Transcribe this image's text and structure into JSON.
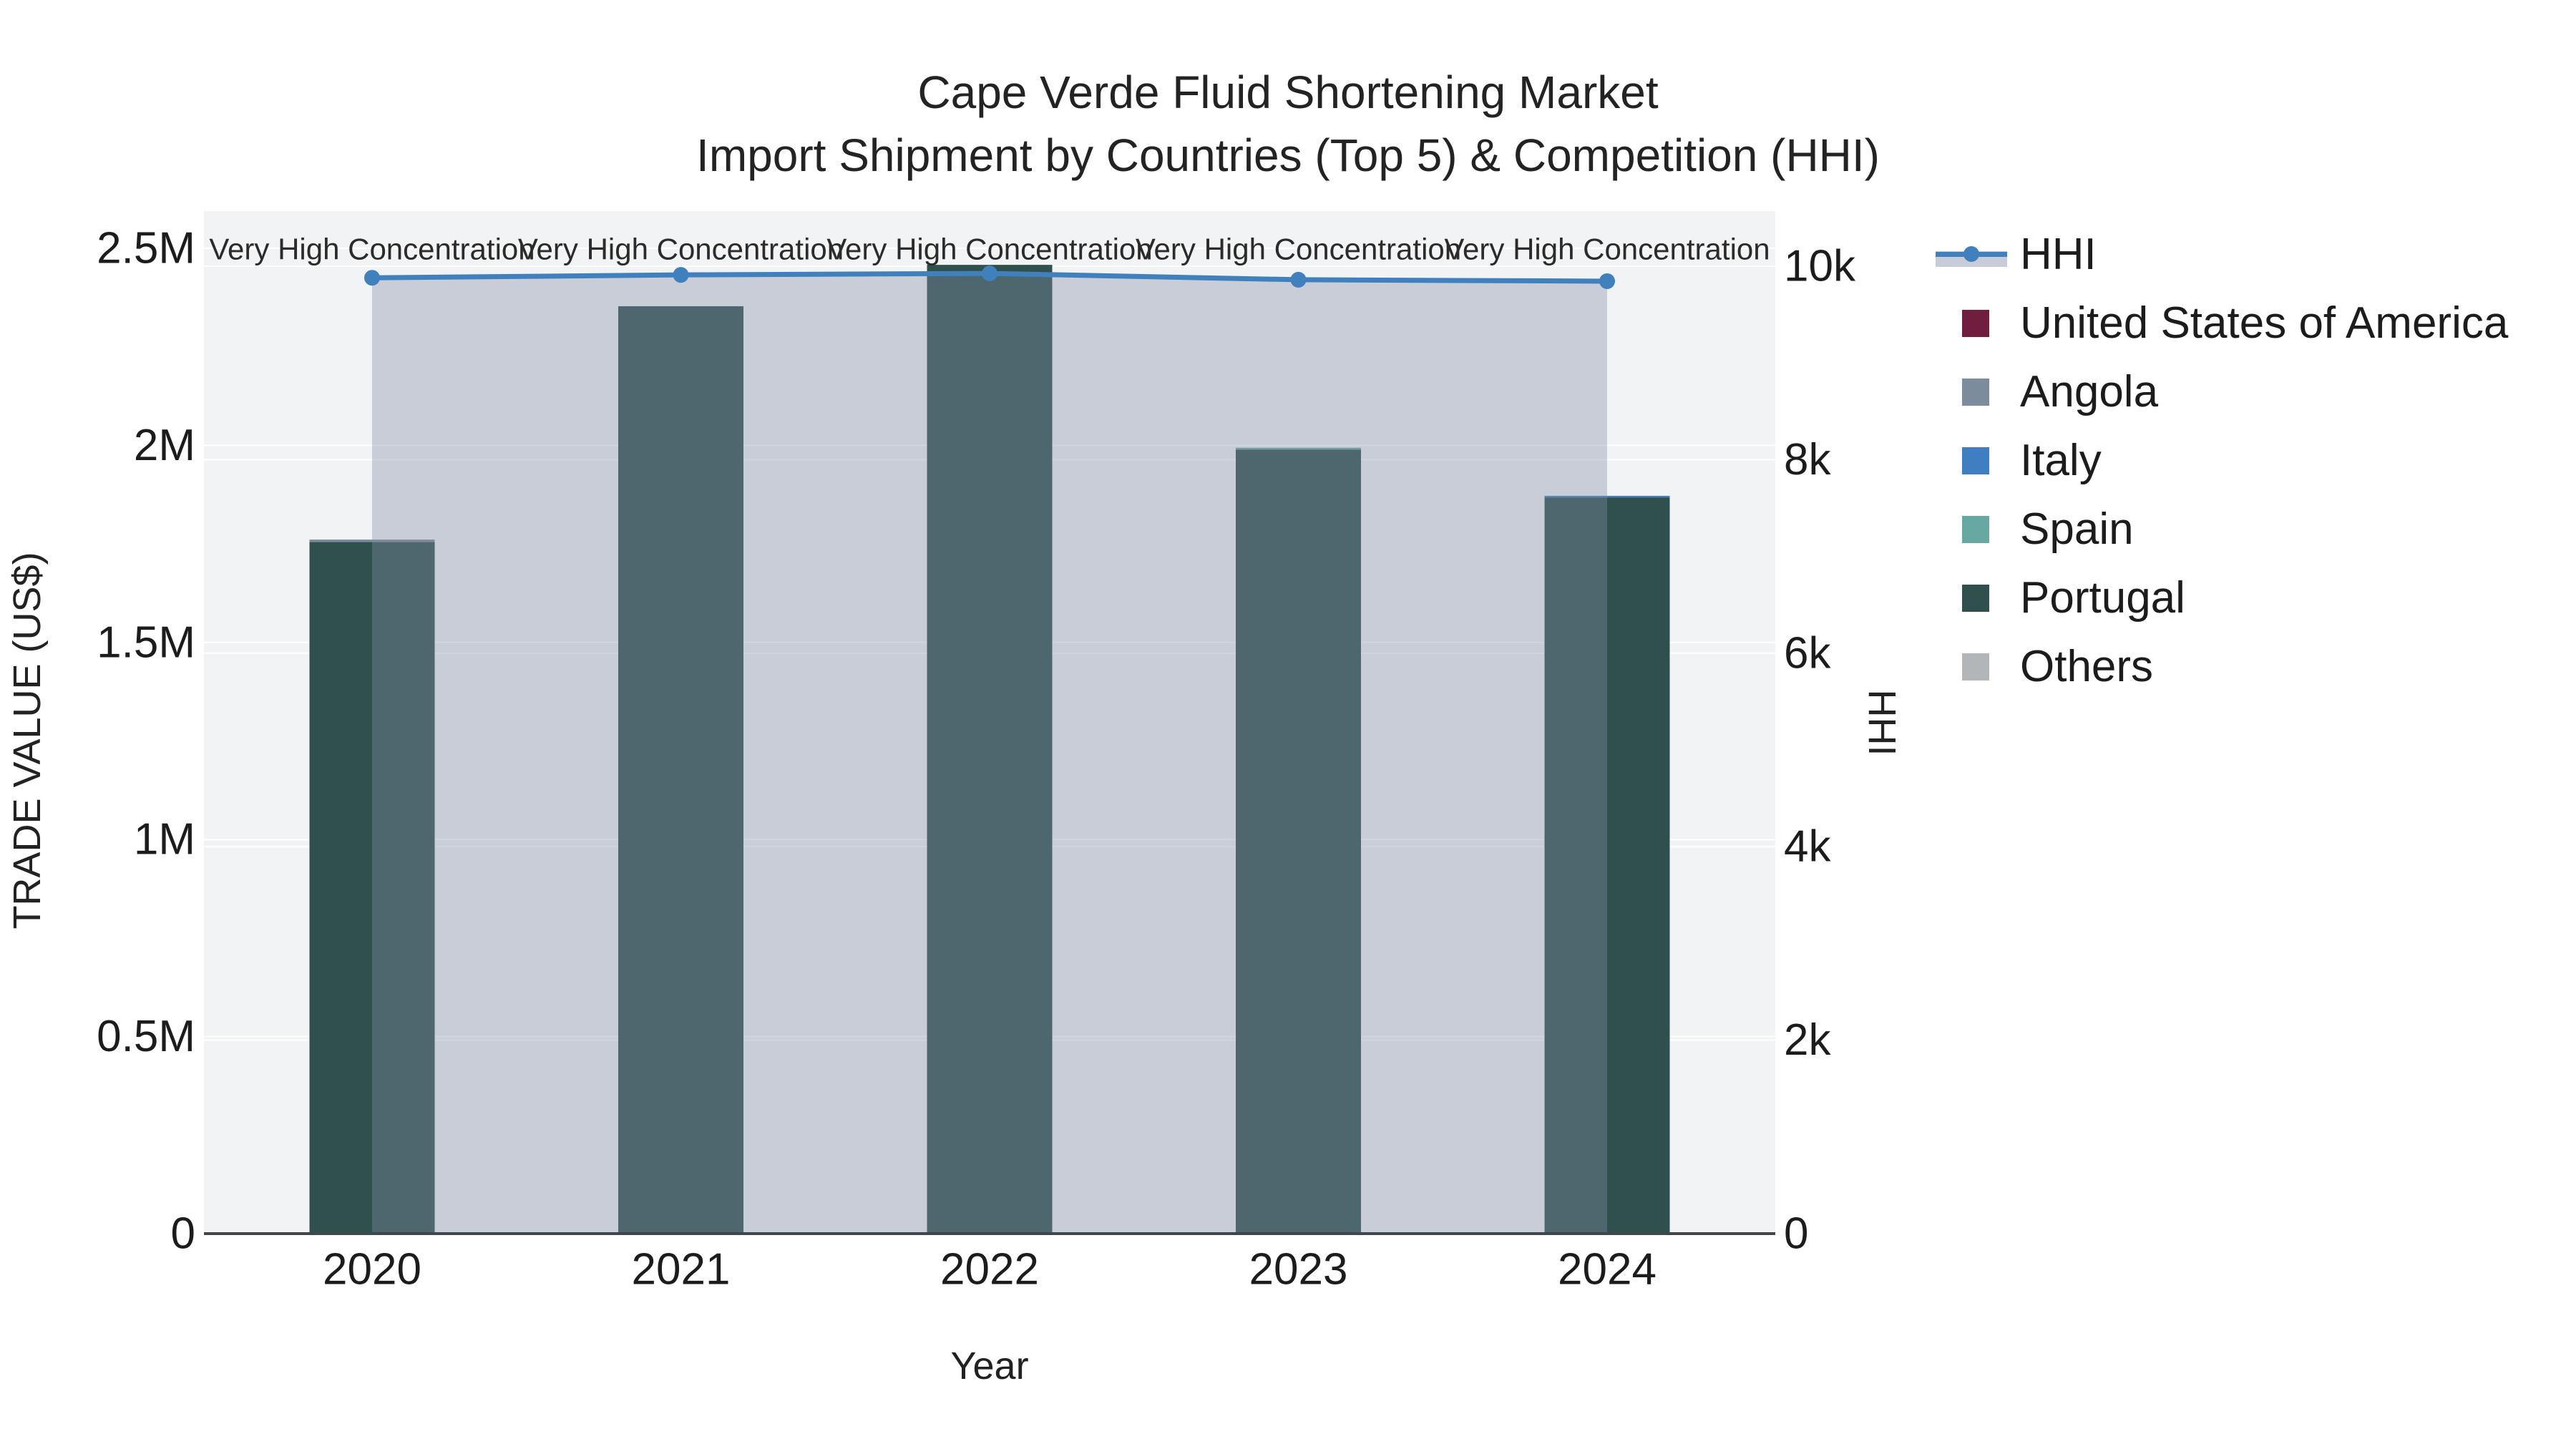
{
  "chart_data": {
    "type": "bar+line",
    "title": "Cape Verde Fluid Shortening Market",
    "subtitle": "Import Shipment by Countries (Top 5) & Competition (HHI)",
    "xlabel": "Year",
    "ylabel_left": "TRADE VALUE (US$)",
    "ylabel_right": "HHI",
    "categories": [
      "2020",
      "2021",
      "2022",
      "2023",
      "2024"
    ],
    "bars_stacked": [
      {
        "year": "2020",
        "segments": [
          {
            "country": "Portugal",
            "value": 1755000
          },
          {
            "country": "Angola",
            "value": 6000
          }
        ]
      },
      {
        "year": "2021",
        "segments": [
          {
            "country": "Portugal",
            "value": 2353000
          }
        ]
      },
      {
        "year": "2022",
        "segments": [
          {
            "country": "Portugal",
            "value": 2458000
          }
        ]
      },
      {
        "year": "2023",
        "segments": [
          {
            "country": "Portugal",
            "value": 1989000
          },
          {
            "country": "Spain",
            "value": 5000
          }
        ]
      },
      {
        "year": "2024",
        "segments": [
          {
            "country": "Portugal",
            "value": 1868000
          },
          {
            "country": "Italy",
            "value": 4000
          }
        ]
      }
    ],
    "bar_totals": [
      1761000,
      2353000,
      2458000,
      1994000,
      1872000
    ],
    "series": [
      {
        "name": "HHI",
        "axis": "right",
        "x": [
          "2020",
          "2021",
          "2022",
          "2023",
          "2024"
        ],
        "values": [
          9880,
          9910,
          9925,
          9860,
          9845
        ]
      }
    ],
    "annotations": [
      {
        "x": "2020",
        "text": "Very High Concentration"
      },
      {
        "x": "2021",
        "text": "Very High Concentration"
      },
      {
        "x": "2022",
        "text": "Very High Concentration"
      },
      {
        "x": "2023",
        "text": "Very High Concentration"
      },
      {
        "x": "2024",
        "text": "Very High Concentration"
      }
    ],
    "y_left": {
      "range": [
        0,
        2500000
      ],
      "tick_values": [
        0,
        500000,
        1000000,
        1500000,
        2000000,
        2500000
      ],
      "tick_labels": [
        "0",
        "0.5M",
        "1M",
        "1.5M",
        "2M",
        "2.5M"
      ]
    },
    "y_right": {
      "range": [
        0,
        10000
      ],
      "tick_values": [
        0,
        2000,
        4000,
        6000,
        8000,
        10000
      ],
      "tick_labels": [
        "0",
        "2k",
        "4k",
        "6k",
        "8k",
        "10k"
      ]
    },
    "legend": [
      {
        "label": "HHI",
        "swatch": "hhi"
      },
      {
        "label": "United States of America",
        "swatch": "United States of America"
      },
      {
        "label": "Angola",
        "swatch": "Angola"
      },
      {
        "label": "Italy",
        "swatch": "Italy"
      },
      {
        "label": "Spain",
        "swatch": "Spain"
      },
      {
        "label": "Portugal",
        "swatch": "Portugal"
      },
      {
        "label": "Others",
        "swatch": "Others"
      }
    ],
    "layout_hints": {
      "grid": true,
      "legend_position": "right",
      "bar_mode": "stacked",
      "hhi_area_fill": true
    },
    "colors": {
      "plot_bg": "#f2f3f4",
      "grid": "#ffffff",
      "axis_line": "#40474c",
      "hhi_line": "#4080bd",
      "hhi_fill": "rgba(130,142,169,0.37)",
      "tick_text": "#1c1c1c",
      "annotation_text": "#2b2b2b",
      "countries": {
        "United States of America": "#701d40",
        "Angola": "#7d8c9c",
        "Italy": "#3f7fc1",
        "Spain": "#68a8a2",
        "Portugal": "#30504d",
        "Others": "#b3b6b9"
      }
    }
  }
}
